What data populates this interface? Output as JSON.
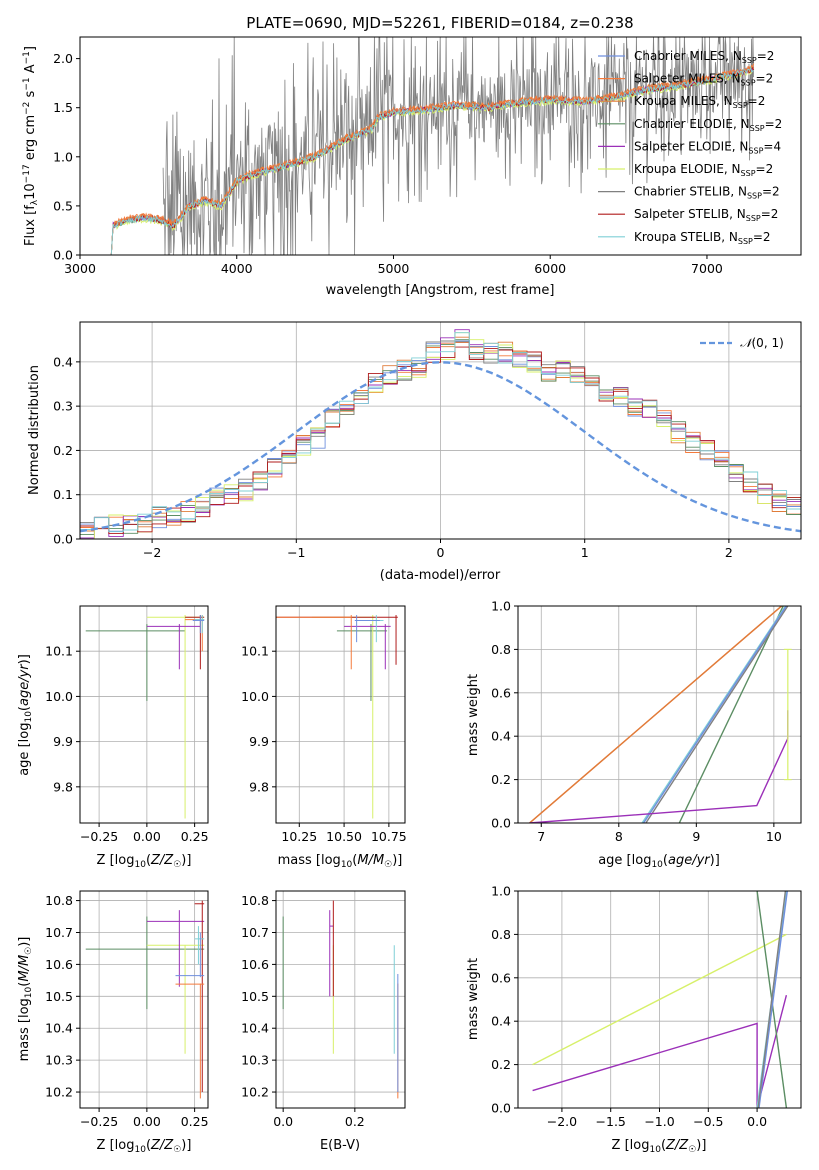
{
  "chart_data": [
    {
      "type": "line",
      "title": "PLATE=0690, MJD=52261, FIBERID=0184, z=0.238",
      "xlabel": "wavelength [Angstrom, rest frame]",
      "ylabel": "Flux [f$_\\lambda$10$^{-17}$ erg cm$^{-2}$ s$^{-1}$ A$^{-1}$]",
      "xlim": [
        3000,
        7600
      ],
      "ylim": [
        0,
        2.22
      ],
      "xticks": [
        "3000",
        "4000",
        "5000",
        "6000",
        "7000"
      ],
      "yticks": [
        "0.0",
        "0.5",
        "1.0",
        "1.5",
        "2.0"
      ],
      "grid": false,
      "legend_position": "top-right",
      "continuum_model": {
        "x": [
          3200,
          3210,
          3300,
          3400,
          3500,
          3600,
          3700,
          3800,
          3900,
          4000,
          4100,
          4300,
          4500,
          4700,
          4860,
          4900,
          5000,
          5200,
          5400,
          5600,
          5800,
          6000,
          6200,
          6400,
          6600,
          6800,
          7000,
          7200,
          7300
        ],
        "y": [
          0.0,
          0.3,
          0.35,
          0.38,
          0.36,
          0.3,
          0.5,
          0.55,
          0.5,
          0.75,
          0.82,
          0.9,
          1.0,
          1.18,
          1.28,
          1.4,
          1.45,
          1.48,
          1.52,
          1.5,
          1.55,
          1.58,
          1.56,
          1.6,
          1.68,
          1.72,
          1.78,
          1.85,
          1.9
        ]
      },
      "data_noise_range": {
        "x_start": 3530,
        "x_end": 7300,
        "y_range": [
          0.0,
          2.2
        ]
      },
      "series": [
        {
          "name": "Chabrier MILES, N$_{SSP}$=2",
          "color": "#6f8fde"
        },
        {
          "name": "Salpeter MILES, N$_{SSP}$=2",
          "color": "#f47a3c"
        },
        {
          "name": "Kroupa MILES, N$_{SSP}$=2",
          "color": "#e07c3a"
        },
        {
          "name": "Chabrier ELODIE, N$_{SSP}$=2",
          "color": "#5b8d63"
        },
        {
          "name": "Salpeter ELODIE, N$_{SSP}$=4",
          "color": "#9b30b8"
        },
        {
          "name": "Kroupa ELODIE, N$_{SSP}$=2",
          "color": "#d7f06a"
        },
        {
          "name": "Chabrier STELIB, N$_{SSP}$=2",
          "color": "#808080"
        },
        {
          "name": "Salpeter STELIB, N$_{SSP}$=2",
          "color": "#b01b1b"
        },
        {
          "name": "Kroupa STELIB, N$_{SSP}$=2",
          "color": "#7fcfd6"
        }
      ]
    },
    {
      "type": "line",
      "xlabel": "(data-model)/error",
      "ylabel": "Normed distribution",
      "xlim": [
        -2.5,
        2.5
      ],
      "ylim": [
        0,
        0.49
      ],
      "xticks": [
        "−2",
        "−1",
        "0",
        "1",
        "2"
      ],
      "yticks": [
        "0.0",
        "0.1",
        "0.2",
        "0.3",
        "0.4"
      ],
      "grid": true,
      "legend_position": "top-right",
      "gaussian_label": "$\\mathcal{N}(0,1)$",
      "histogram_bins": {
        "x_start": -2.5,
        "bin_width": 0.1,
        "heights": [
          0.018,
          0.025,
          0.03,
          0.032,
          0.04,
          0.05,
          0.055,
          0.06,
          0.075,
          0.09,
          0.1,
          0.11,
          0.13,
          0.16,
          0.19,
          0.21,
          0.23,
          0.27,
          0.3,
          0.32,
          0.35,
          0.37,
          0.38,
          0.39,
          0.42,
          0.43,
          0.45,
          0.43,
          0.42,
          0.42,
          0.41,
          0.4,
          0.38,
          0.38,
          0.37,
          0.35,
          0.33,
          0.32,
          0.3,
          0.29,
          0.27,
          0.24,
          0.22,
          0.2,
          0.18,
          0.15,
          0.13,
          0.1,
          0.085,
          0.07
        ]
      }
    },
    {
      "type": "scatter",
      "xlabel": "Z [log$_{10}$($Z/Z_\\odot$)]",
      "ylabel": "age  [log$_{10}$($age/yr$)]",
      "xlim": [
        -0.35,
        0.32
      ],
      "ylim": [
        9.72,
        10.2
      ],
      "xticks": [
        "−0.25",
        "0.00",
        "0.25"
      ],
      "yticks": [
        "9.8",
        "9.9",
        "10.0",
        "10.1"
      ]
    },
    {
      "type": "scatter",
      "xlabel": "mass [log$_{10}$($M/M_\\odot$)]",
      "ylabel": "",
      "xlim": [
        10.12,
        10.84
      ],
      "ylim": [
        9.72,
        10.2
      ],
      "xticks": [
        "10.25",
        "10.50",
        "10.75"
      ],
      "yticks": [
        "9.8",
        "9.9",
        "10.0",
        "10.1"
      ]
    },
    {
      "type": "line",
      "xlabel": "age  [log$_{10}$($age/yr$)]",
      "ylabel": "mass weight",
      "xlim": [
        6.7,
        10.35
      ],
      "ylim": [
        0,
        1
      ],
      "xticks": [
        "7",
        "8",
        "9",
        "10"
      ],
      "yticks": [
        "0.0",
        "0.2",
        "0.4",
        "0.6",
        "0.8",
        "1.0"
      ]
    },
    {
      "type": "scatter",
      "xlabel": "Z [log$_{10}$($Z/Z_\\odot$)]",
      "ylabel": "mass [log$_{10}$($M/M_\\odot$)]",
      "xlim": [
        -0.35,
        0.32
      ],
      "ylim": [
        10.15,
        10.83
      ],
      "xticks": [
        "−0.25",
        "0.00",
        "0.25"
      ],
      "yticks": [
        "10.2",
        "10.3",
        "10.4",
        "10.5",
        "10.6",
        "10.7",
        "10.8"
      ]
    },
    {
      "type": "scatter",
      "xlabel": "E(B-V)",
      "ylabel": "",
      "xlim": [
        -0.02,
        0.34
      ],
      "ylim": [
        10.15,
        10.83
      ],
      "xticks": [
        "0.0",
        "0.2"
      ],
      "yticks": [
        "10.2",
        "10.3",
        "10.4",
        "10.5",
        "10.6",
        "10.7",
        "10.8"
      ]
    },
    {
      "type": "line",
      "xlabel": "Z [log$_{10}$($Z/Z_\\odot$)]",
      "ylabel": "mass weight",
      "xlim": [
        -2.45,
        0.45
      ],
      "ylim": [
        0,
        1
      ],
      "xticks": [
        "−2.0",
        "−1.5",
        "−1.0",
        "−0.5",
        "0.0"
      ],
      "yticks": [
        "0.0",
        "0.2",
        "0.4",
        "0.6",
        "0.8",
        "1.0"
      ]
    }
  ],
  "display": {
    "title": "PLATE=0690, MJD=52261, FIBERID=0184, z=0.238",
    "spec_xlabel": "wavelength [Angstrom, rest frame]",
    "hist_xlabel": "(data-model)/error",
    "hist_ylabel": "Normed distribution",
    "ylabel_age": "age  [log",
    "ylabel_mass": "mass [log",
    "ylabel_weight": "mass weight",
    "xlabel_Z": "Z [log",
    "xlabel_mass": "mass [log",
    "xlabel_age": "age  [log",
    "xlabel_ebv": "E(B-V)"
  }
}
